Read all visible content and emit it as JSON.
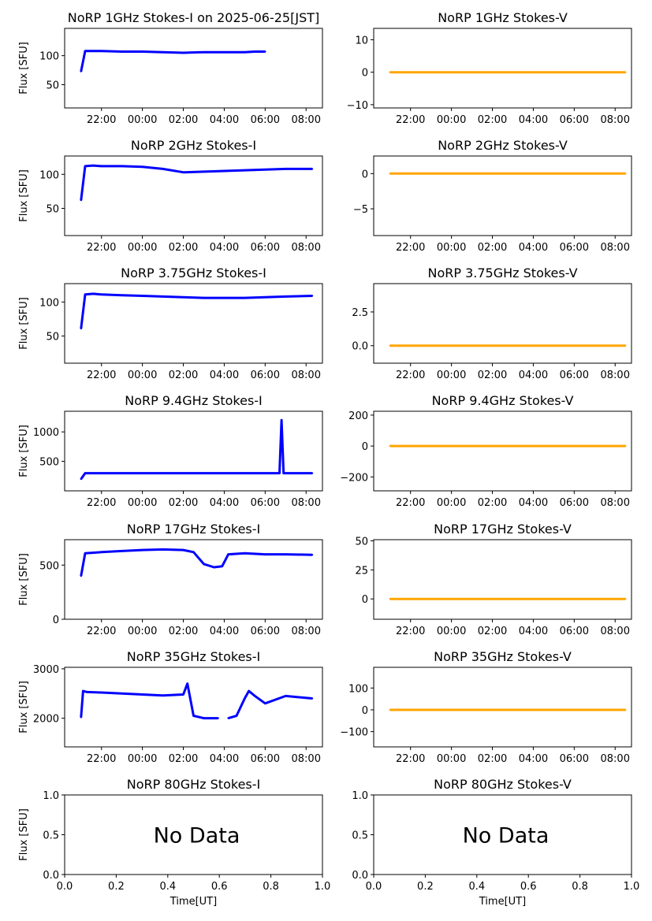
{
  "colors": {
    "stokes_i": "#0000ff",
    "stokes_v": "#ffa500",
    "axis": "#000000"
  },
  "chart_data": [
    {
      "type": "scatter",
      "title": "NoRP 1GHz Stokes-I on 2025-06-25[JST]",
      "ylabel": "Flux [SFU]",
      "xlabel": "",
      "xticks": [
        "22:00",
        "00:00",
        "02:00",
        "04:00",
        "06:00",
        "08:00"
      ],
      "xlim": [
        20.2,
        32.8
      ],
      "ylim": [
        10,
        147
      ],
      "yticks": [
        50,
        100
      ],
      "ytick_labels": [
        "50",
        "100"
      ],
      "color": "#0000ff",
      "series": [
        {
          "x": [
            21.0,
            21.2,
            21.6,
            22,
            23,
            24,
            25,
            26,
            27,
            28,
            29,
            29.5,
            30.0
          ],
          "y": [
            73,
            108,
            108,
            108,
            107,
            107,
            106,
            105,
            106,
            106,
            106,
            107,
            107
          ]
        }
      ]
    },
    {
      "type": "scatter",
      "title": "NoRP 1GHz Stokes-V",
      "ylabel": "",
      "xlabel": "",
      "xticks": [
        "22:00",
        "00:00",
        "02:00",
        "04:00",
        "06:00",
        "08:00"
      ],
      "xlim": [
        20.2,
        32.8
      ],
      "ylim": [
        -11,
        13.5
      ],
      "yticks": [
        -10,
        0,
        10
      ],
      "ytick_labels": [
        "−10",
        "0",
        "10"
      ],
      "color": "#ffa500",
      "series": [
        {
          "x": [
            21.0,
            22,
            24,
            26,
            28,
            29,
            29.2,
            30,
            31,
            32.5
          ],
          "y": [
            0,
            0,
            0,
            0,
            0,
            0,
            0,
            0,
            0,
            0
          ]
        }
      ]
    },
    {
      "type": "scatter",
      "title": "NoRP 2GHz Stokes-I",
      "ylabel": "Flux [SFU]",
      "xlabel": "",
      "xticks": [
        "22:00",
        "00:00",
        "02:00",
        "04:00",
        "06:00",
        "08:00"
      ],
      "xlim": [
        20.2,
        32.8
      ],
      "ylim": [
        10,
        127
      ],
      "yticks": [
        50,
        100
      ],
      "ytick_labels": [
        "50",
        "100"
      ],
      "color": "#0000ff",
      "series": [
        {
          "x": [
            21.0,
            21.2,
            21.6,
            22,
            23,
            24,
            25,
            26,
            27,
            28,
            29,
            30,
            31,
            32.3
          ],
          "y": [
            62,
            112,
            113,
            112,
            112,
            111,
            108,
            103,
            104,
            105,
            106,
            107,
            108,
            108
          ]
        }
      ]
    },
    {
      "type": "scatter",
      "title": "NoRP 2GHz Stokes-V",
      "ylabel": "",
      "xlabel": "",
      "xticks": [
        "22:00",
        "00:00",
        "02:00",
        "04:00",
        "06:00",
        "08:00"
      ],
      "xlim": [
        20.2,
        32.8
      ],
      "ylim": [
        -8.8,
        2.5
      ],
      "yticks": [
        -5,
        0
      ],
      "ytick_labels": [
        "−5",
        "0"
      ],
      "color": "#ffa500",
      "series": [
        {
          "x": [
            21.0,
            32.5
          ],
          "y": [
            0,
            0
          ]
        }
      ]
    },
    {
      "type": "scatter",
      "title": "NoRP 3.75GHz Stokes-I",
      "ylabel": "Flux [SFU]",
      "xlabel": "",
      "xticks": [
        "22:00",
        "00:00",
        "02:00",
        "04:00",
        "06:00",
        "08:00"
      ],
      "xlim": [
        20.2,
        32.8
      ],
      "ylim": [
        10,
        127
      ],
      "yticks": [
        50,
        100
      ],
      "ytick_labels": [
        "50",
        "100"
      ],
      "color": "#0000ff",
      "series": [
        {
          "x": [
            21.0,
            21.2,
            21.6,
            22,
            23,
            24,
            25,
            26,
            27,
            28,
            29,
            30,
            31,
            32.3
          ],
          "y": [
            61,
            111,
            112,
            111,
            110,
            109,
            108,
            107,
            106,
            106,
            106,
            107,
            108,
            109
          ]
        }
      ]
    },
    {
      "type": "scatter",
      "title": "NoRP 3.75GHz Stokes-V",
      "ylabel": "",
      "xlabel": "",
      "xticks": [
        "22:00",
        "00:00",
        "02:00",
        "04:00",
        "06:00",
        "08:00"
      ],
      "xlim": [
        20.2,
        32.8
      ],
      "ylim": [
        -1.3,
        4.6
      ],
      "yticks": [
        0,
        2.5
      ],
      "ytick_labels": [
        "0.0",
        "2.5"
      ],
      "color": "#ffa500",
      "series": [
        {
          "x": [
            21.0,
            32.5
          ],
          "y": [
            0,
            0
          ]
        }
      ]
    },
    {
      "type": "scatter",
      "title": "NoRP 9.4GHz Stokes-I",
      "ylabel": "Flux [SFU]",
      "xlabel": "",
      "xticks": [
        "22:00",
        "00:00",
        "02:00",
        "04:00",
        "06:00",
        "08:00"
      ],
      "xlim": [
        20.2,
        32.8
      ],
      "ylim": [
        0,
        1350
      ],
      "yticks": [
        500,
        1000
      ],
      "ytick_labels": [
        "500",
        "1000"
      ],
      "color": "#0000ff",
      "series": [
        {
          "x": [
            21.0,
            21.2,
            22,
            23,
            24,
            25,
            26,
            27,
            28,
            29,
            30,
            30.7,
            30.8,
            30.9,
            31,
            32.3
          ],
          "y": [
            200,
            300,
            300,
            300,
            300,
            300,
            300,
            300,
            300,
            300,
            300,
            300,
            1200,
            300,
            300,
            300
          ]
        }
      ]
    },
    {
      "type": "scatter",
      "title": "NoRP 9.4GHz Stokes-V",
      "ylabel": "",
      "xlabel": "",
      "xticks": [
        "22:00",
        "00:00",
        "02:00",
        "04:00",
        "06:00",
        "08:00"
      ],
      "xlim": [
        20.2,
        32.8
      ],
      "ylim": [
        -290,
        225
      ],
      "yticks": [
        -200,
        0,
        200
      ],
      "ytick_labels": [
        "−200",
        "0",
        "200"
      ],
      "color": "#ffa500",
      "series": [
        {
          "x": [
            21.0,
            22,
            24,
            26,
            28,
            30,
            30.8,
            31,
            32.5
          ],
          "y": [
            0,
            0,
            0,
            0,
            0,
            0,
            0,
            0,
            0
          ]
        }
      ]
    },
    {
      "type": "scatter",
      "title": "NoRP 17GHz Stokes-I",
      "ylabel": "Flux [SFU]",
      "xlabel": "",
      "xticks": [
        "22:00",
        "00:00",
        "02:00",
        "04:00",
        "06:00",
        "08:00"
      ],
      "xlim": [
        20.2,
        32.8
      ],
      "ylim": [
        0,
        735
      ],
      "yticks": [
        0,
        500
      ],
      "ytick_labels": [
        "0",
        "500"
      ],
      "color": "#0000ff",
      "series": [
        {
          "x": [
            21.0,
            21.2,
            22,
            23,
            24,
            25,
            26,
            26.5,
            27,
            27.5,
            27.9,
            28.2,
            29,
            30,
            31,
            32.3
          ],
          "y": [
            400,
            610,
            620,
            630,
            640,
            645,
            640,
            620,
            510,
            480,
            490,
            600,
            610,
            600,
            600,
            595
          ]
        }
      ]
    },
    {
      "type": "scatter",
      "title": "NoRP 17GHz Stokes-V",
      "ylabel": "",
      "xlabel": "",
      "xticks": [
        "22:00",
        "00:00",
        "02:00",
        "04:00",
        "06:00",
        "08:00"
      ],
      "xlim": [
        20.2,
        32.8
      ],
      "ylim": [
        -17.5,
        51
      ],
      "yticks": [
        0,
        25,
        50
      ],
      "ytick_labels": [
        "0",
        "25",
        "50"
      ],
      "color": "#ffa500",
      "series": [
        {
          "x": [
            21.0,
            32.5
          ],
          "y": [
            0,
            0
          ]
        }
      ]
    },
    {
      "type": "scatter",
      "title": "NoRP 35GHz Stokes-I",
      "ylabel": "Flux [SFU]",
      "xlabel": "",
      "xticks": [
        "22:00",
        "00:00",
        "02:00",
        "04:00",
        "06:00",
        "08:00"
      ],
      "xlim": [
        20.2,
        32.8
      ],
      "ylim": [
        1420,
        3030
      ],
      "yticks": [
        2000,
        3000
      ],
      "ytick_labels": [
        "2000",
        "3000"
      ],
      "color": "#0000ff",
      "series": [
        {
          "x": [
            21.0,
            21.1,
            21.3,
            22,
            23,
            24,
            25,
            26,
            26.2,
            26.5,
            27,
            27.5,
            27.7
          ],
          "y": [
            2020,
            2550,
            2530,
            2520,
            2500,
            2480,
            2460,
            2480,
            2700,
            2050,
            2000,
            2000,
            2000
          ]
        },
        {
          "x": [
            28.2,
            28.6,
            29.0,
            29.2,
            29.5,
            30,
            31,
            32.3
          ],
          "y": [
            2000,
            2050,
            2400,
            2550,
            2450,
            2300,
            2450,
            2400
          ]
        }
      ]
    },
    {
      "type": "scatter",
      "title": "NoRP 35GHz Stokes-V",
      "ylabel": "",
      "xlabel": "",
      "xticks": [
        "22:00",
        "00:00",
        "02:00",
        "04:00",
        "06:00",
        "08:00"
      ],
      "xlim": [
        20.2,
        32.8
      ],
      "ylim": [
        -170,
        195
      ],
      "yticks": [
        -100,
        0,
        100
      ],
      "ytick_labels": [
        "−100",
        "0",
        "100"
      ],
      "color": "#ffa500",
      "series": [
        {
          "x": [
            21.0,
            32.5
          ],
          "y": [
            0,
            0
          ]
        }
      ]
    },
    {
      "type": "scatter",
      "title": "NoRP 80GHz Stokes-I",
      "ylabel": "Flux [SFU]",
      "xlabel": "Time[UT]",
      "annotation": "No Data",
      "xlim": [
        0,
        1
      ],
      "ylim": [
        0,
        1
      ],
      "xticks": [
        "0.0",
        "0.2",
        "0.4",
        "0.6",
        "0.8",
        "1.0"
      ],
      "yticks": [
        0,
        0.5,
        1
      ],
      "ytick_labels": [
        "0.0",
        "0.5",
        "1.0"
      ],
      "color": "#0000ff",
      "series": []
    },
    {
      "type": "scatter",
      "title": "NoRP 80GHz Stokes-V",
      "ylabel": "",
      "xlabel": "Time[UT]",
      "annotation": "No Data",
      "xlim": [
        0,
        1
      ],
      "ylim": [
        0,
        1
      ],
      "xticks": [
        "0.0",
        "0.2",
        "0.4",
        "0.6",
        "0.8",
        "1.0"
      ],
      "yticks": [
        0,
        0.5,
        1
      ],
      "ytick_labels": [
        "0.0",
        "0.5",
        "1.0"
      ],
      "color": "#ffa500",
      "series": []
    }
  ]
}
